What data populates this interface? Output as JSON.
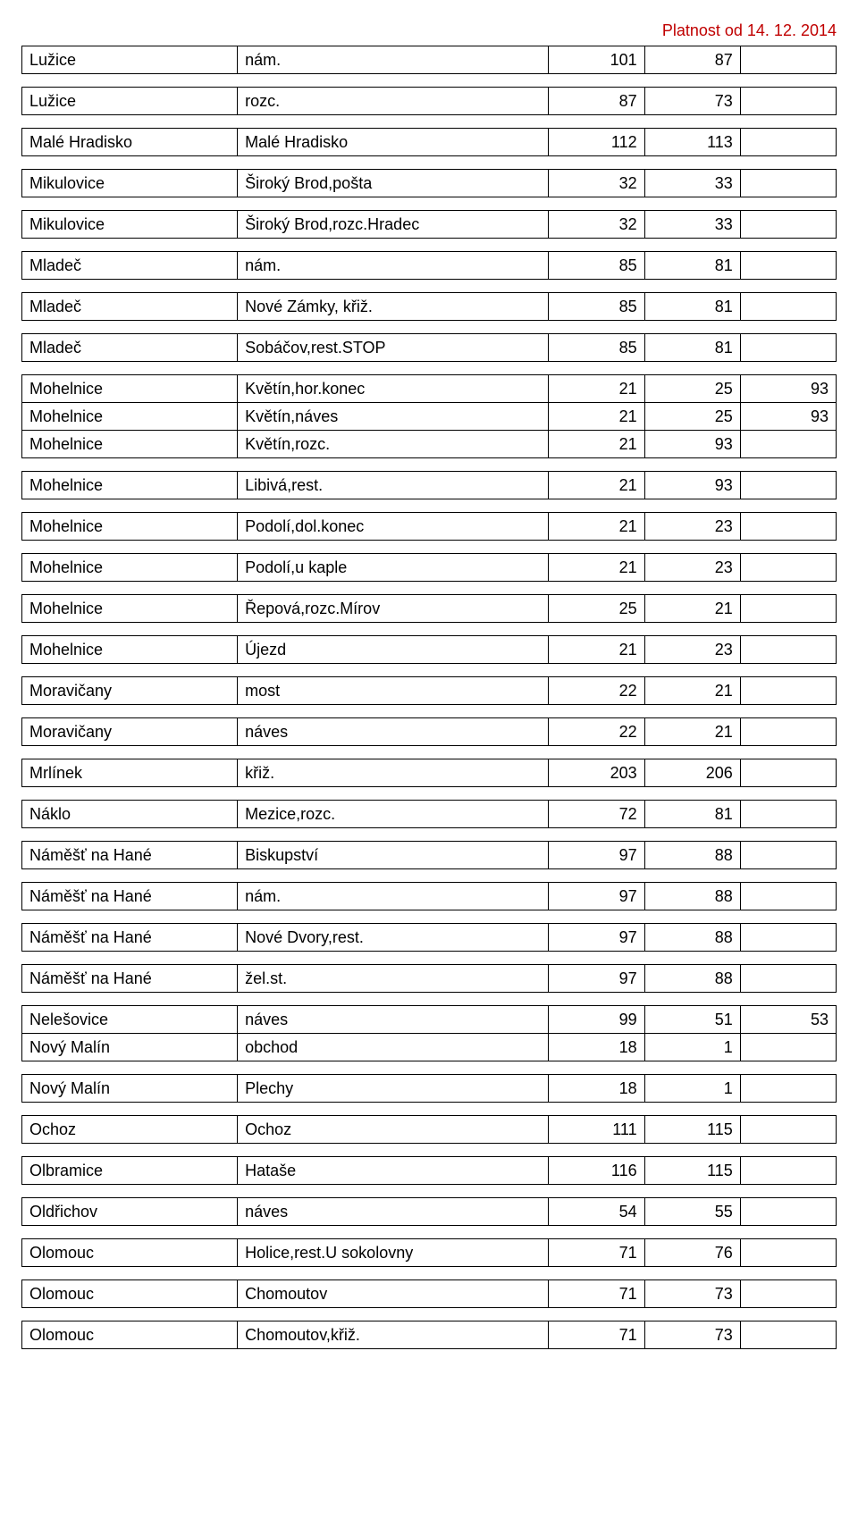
{
  "validity": "Platnost od 14. 12. 2014",
  "colors": {
    "validity": "#c00000",
    "border": "#000000",
    "text": "#000000",
    "background": "#ffffff"
  },
  "groups": [
    {
      "rows": [
        {
          "c1": "Lužice",
          "c2": "nám.",
          "c3": "101",
          "c4": "87",
          "c5": ""
        }
      ]
    },
    {
      "rows": [
        {
          "c1": "Lužice",
          "c2": "rozc.",
          "c3": "87",
          "c4": "73",
          "c5": ""
        }
      ]
    },
    {
      "rows": [
        {
          "c1": "Malé Hradisko",
          "c2": "Malé Hradisko",
          "c3": "112",
          "c4": "113",
          "c5": ""
        }
      ]
    },
    {
      "rows": [
        {
          "c1": "Mikulovice",
          "c2": "Široký Brod,pošta",
          "c3": "32",
          "c4": "33",
          "c5": ""
        }
      ]
    },
    {
      "rows": [
        {
          "c1": "Mikulovice",
          "c2": "Široký Brod,rozc.Hradec",
          "c3": "32",
          "c4": "33",
          "c5": ""
        }
      ]
    },
    {
      "rows": [
        {
          "c1": "Mladeč",
          "c2": "nám.",
          "c3": "85",
          "c4": "81",
          "c5": ""
        }
      ]
    },
    {
      "rows": [
        {
          "c1": "Mladeč",
          "c2": "Nové Zámky, křiž.",
          "c3": "85",
          "c4": "81",
          "c5": ""
        }
      ]
    },
    {
      "rows": [
        {
          "c1": "Mladeč",
          "c2": "Sobáčov,rest.STOP",
          "c3": "85",
          "c4": "81",
          "c5": ""
        }
      ]
    },
    {
      "rows": [
        {
          "c1": "Mohelnice",
          "c2": "Květín,hor.konec",
          "c3": "21",
          "c4": "25",
          "c5": "93"
        },
        {
          "c1": "Mohelnice",
          "c2": "Květín,náves",
          "c3": "21",
          "c4": "25",
          "c5": "93"
        },
        {
          "c1": "Mohelnice",
          "c2": "Květín,rozc.",
          "c3": "21",
          "c4": "93",
          "c5": ""
        }
      ]
    },
    {
      "rows": [
        {
          "c1": "Mohelnice",
          "c2": "Libivá,rest.",
          "c3": "21",
          "c4": "93",
          "c5": ""
        }
      ]
    },
    {
      "rows": [
        {
          "c1": "Mohelnice",
          "c2": "Podolí,dol.konec",
          "c3": "21",
          "c4": "23",
          "c5": ""
        }
      ]
    },
    {
      "rows": [
        {
          "c1": "Mohelnice",
          "c2": "Podolí,u kaple",
          "c3": "21",
          "c4": "23",
          "c5": ""
        }
      ]
    },
    {
      "rows": [
        {
          "c1": "Mohelnice",
          "c2": "Řepová,rozc.Mírov",
          "c3": "25",
          "c4": "21",
          "c5": ""
        }
      ]
    },
    {
      "rows": [
        {
          "c1": "Mohelnice",
          "c2": "Újezd",
          "c3": "21",
          "c4": "23",
          "c5": ""
        }
      ]
    },
    {
      "rows": [
        {
          "c1": "Moravičany",
          "c2": "most",
          "c3": "22",
          "c4": "21",
          "c5": ""
        }
      ]
    },
    {
      "rows": [
        {
          "c1": "Moravičany",
          "c2": "náves",
          "c3": "22",
          "c4": "21",
          "c5": ""
        }
      ]
    },
    {
      "rows": [
        {
          "c1": "Mrlínek",
          "c2": "křiž.",
          "c3": "203",
          "c4": "206",
          "c5": ""
        }
      ]
    },
    {
      "rows": [
        {
          "c1": "Náklo",
          "c2": "Mezice,rozc.",
          "c3": "72",
          "c4": "81",
          "c5": ""
        }
      ]
    },
    {
      "rows": [
        {
          "c1": "Náměšť na Hané",
          "c2": "Biskupství",
          "c3": "97",
          "c4": "88",
          "c5": ""
        }
      ]
    },
    {
      "rows": [
        {
          "c1": "Náměšť na Hané",
          "c2": "nám.",
          "c3": "97",
          "c4": "88",
          "c5": ""
        }
      ]
    },
    {
      "rows": [
        {
          "c1": "Náměšť na Hané",
          "c2": "Nové Dvory,rest.",
          "c3": "97",
          "c4": "88",
          "c5": ""
        }
      ]
    },
    {
      "rows": [
        {
          "c1": "Náměšť na Hané",
          "c2": "žel.st.",
          "c3": "97",
          "c4": "88",
          "c5": ""
        }
      ]
    },
    {
      "rows": [
        {
          "c1": "Nelešovice",
          "c2": "náves",
          "c3": "99",
          "c4": "51",
          "c5": "53"
        },
        {
          "c1": "Nový Malín",
          "c2": "obchod",
          "c3": "18",
          "c4": "1",
          "c5": ""
        }
      ]
    },
    {
      "rows": [
        {
          "c1": "Nový Malín",
          "c2": "Plechy",
          "c3": "18",
          "c4": "1",
          "c5": ""
        }
      ]
    },
    {
      "rows": [
        {
          "c1": "Ochoz",
          "c2": "Ochoz",
          "c3": "111",
          "c4": "115",
          "c5": ""
        }
      ]
    },
    {
      "rows": [
        {
          "c1": "Olbramice",
          "c2": "Hataše",
          "c3": "116",
          "c4": "115",
          "c5": ""
        }
      ]
    },
    {
      "rows": [
        {
          "c1": "Oldřichov",
          "c2": "náves",
          "c3": "54",
          "c4": "55",
          "c5": ""
        }
      ]
    },
    {
      "rows": [
        {
          "c1": "Olomouc",
          "c2": "Holice,rest.U sokolovny",
          "c3": "71",
          "c4": "76",
          "c5": ""
        }
      ]
    },
    {
      "rows": [
        {
          "c1": "Olomouc",
          "c2": "Chomoutov",
          "c3": "71",
          "c4": "73",
          "c5": ""
        }
      ]
    },
    {
      "rows": [
        {
          "c1": "Olomouc",
          "c2": "Chomoutov,křiž.",
          "c3": "71",
          "c4": "73",
          "c5": ""
        }
      ]
    }
  ]
}
